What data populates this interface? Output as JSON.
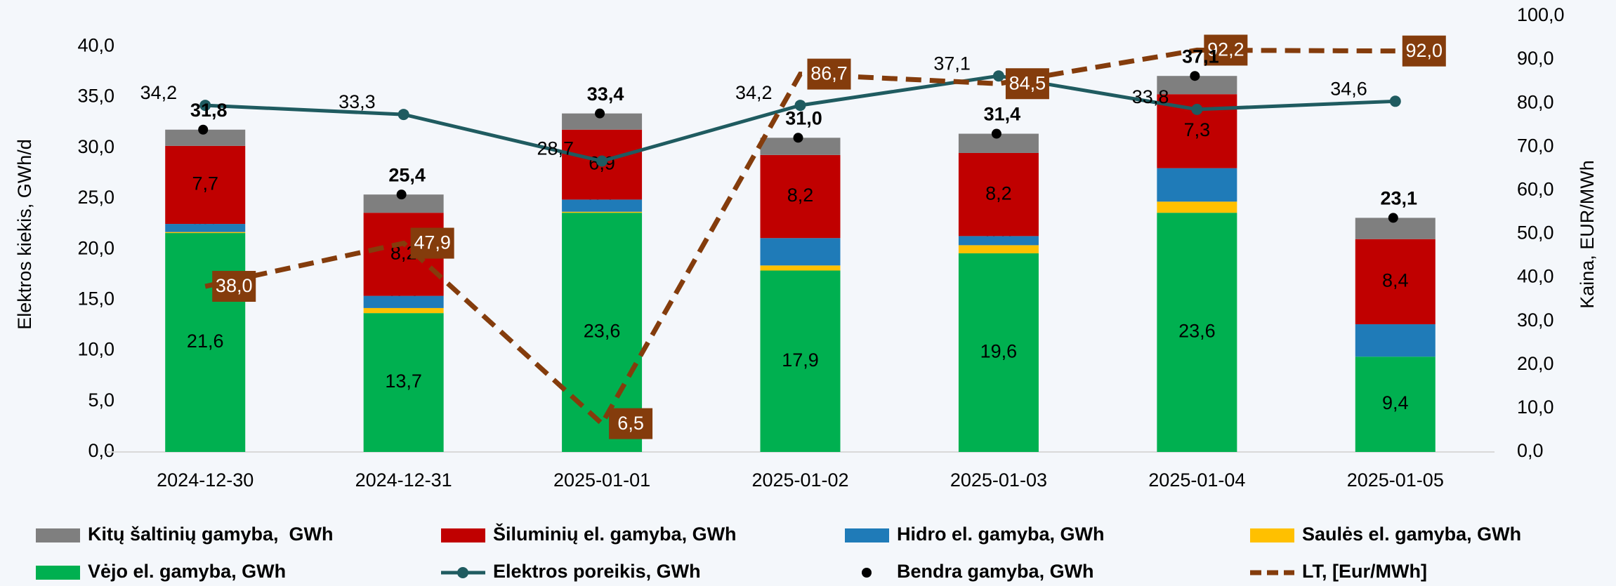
{
  "chart_data": {
    "type": "bar",
    "y_label": "Elektros kiekis, GWh/d",
    "y2_label": "Kaina, EUR/MWh",
    "categories": [
      "2024-12-30",
      "2024-12-31",
      "2025-01-01",
      "2025-01-02",
      "2025-01-03",
      "2025-01-04",
      "2025-01-05"
    ],
    "ylim": [
      0,
      43
    ],
    "yticks": [
      {
        "value": 0,
        "label": "0,0"
      },
      {
        "value": 5,
        "label": "5,0"
      },
      {
        "value": 10,
        "label": "10,0"
      },
      {
        "value": 15,
        "label": "15,0"
      },
      {
        "value": 20,
        "label": "20,0"
      },
      {
        "value": 25,
        "label": "25,0"
      },
      {
        "value": 30,
        "label": "30,0"
      },
      {
        "value": 35,
        "label": "35,0"
      },
      {
        "value": 40,
        "label": "40,0"
      }
    ],
    "y2lim": [
      0,
      100
    ],
    "y2ticks": [
      {
        "value": 0,
        "label": "0,0"
      },
      {
        "value": 10,
        "label": "10,0"
      },
      {
        "value": 20,
        "label": "20,0"
      },
      {
        "value": 30,
        "label": "30,0"
      },
      {
        "value": 40,
        "label": "40,0"
      },
      {
        "value": 50,
        "label": "50,0"
      },
      {
        "value": 60,
        "label": "60,0"
      },
      {
        "value": 70,
        "label": "70,0"
      },
      {
        "value": 80,
        "label": "80,0"
      },
      {
        "value": 90,
        "label": "90,0"
      },
      {
        "value": 100,
        "label": "100,0"
      }
    ],
    "series": [
      {
        "name": "Kitų šaltinių gamyba,  GWh",
        "type": "bar",
        "color": "#7f7f7f",
        "values": [
          1.6,
          1.8,
          1.6,
          1.7,
          1.9,
          1.8,
          2.1
        ]
      },
      {
        "name": "Šiluminių el. gamyba, GWh",
        "type": "bar",
        "color": "#c00000",
        "values": [
          7.7,
          8.2,
          6.9,
          8.2,
          8.2,
          7.3,
          8.4
        ],
        "value_labels": [
          "7,7",
          "8,2",
          "6,9",
          "8,2",
          "8,2",
          "7,3",
          "8,4"
        ]
      },
      {
        "name": "Hidro el. gamyba, GWh",
        "type": "bar",
        "color": "#1f7bb8",
        "values": [
          0.8,
          1.2,
          1.2,
          2.7,
          0.9,
          3.3,
          3.2
        ]
      },
      {
        "name": "Saulės el. gamyba, GWh",
        "type": "bar",
        "color": "#ffc000",
        "values": [
          0.1,
          0.5,
          0.1,
          0.5,
          0.8,
          1.1,
          0.0
        ],
        "value_labels": [
          "0,1",
          "0,5",
          "0,1",
          "0,5",
          "0,8",
          "1,1",
          "0,0"
        ]
      },
      {
        "name": "Vėjo el. gamyba, GWh",
        "type": "bar",
        "color": "#00b050",
        "values": [
          21.6,
          13.7,
          23.6,
          17.9,
          19.6,
          23.6,
          9.4
        ],
        "value_labels": [
          "21,6",
          "13,7",
          "23,6",
          "17,9",
          "19,6",
          "23,6",
          "9,4"
        ]
      },
      {
        "name": "Elektros poreikis, GWh",
        "type": "line",
        "color": "#1f5b60",
        "values": [
          34.2,
          33.3,
          28.7,
          34.2,
          37.1,
          33.8,
          34.6
        ],
        "value_labels": [
          "34,2",
          "33,3",
          "28,7",
          "34,2",
          "37,1",
          "33,8",
          "34,6"
        ]
      },
      {
        "name": "Bendra gamyba, GWh",
        "type": "scatter",
        "color": "#000000",
        "values": [
          31.8,
          25.4,
          33.4,
          31.0,
          31.4,
          37.1,
          23.1
        ],
        "value_labels": [
          "31,8",
          "25,4",
          "33,4",
          "31,0",
          "31,4",
          "37,1",
          "23,1"
        ]
      },
      {
        "name": "LT, [Eur/MWh]",
        "type": "line",
        "dashed": true,
        "axis": "y2",
        "color": "#843c0c",
        "values": [
          38.0,
          47.9,
          6.5,
          86.7,
          84.5,
          92.2,
          92.0
        ],
        "value_labels": [
          "38,0",
          "47,9",
          "6,5",
          "86,7",
          "84,5",
          "92,2",
          "92,0"
        ]
      }
    ]
  }
}
